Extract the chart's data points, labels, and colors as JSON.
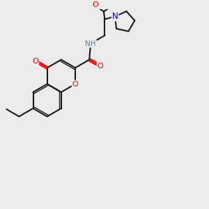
{
  "bg_color": "#ebebeb",
  "bond_color": "#1a1a1a",
  "atom_colors": {
    "O": "#ff0000",
    "N": "#0000cc",
    "NH": "#448899",
    "C": "#1a1a1a"
  },
  "bl": 0.82
}
